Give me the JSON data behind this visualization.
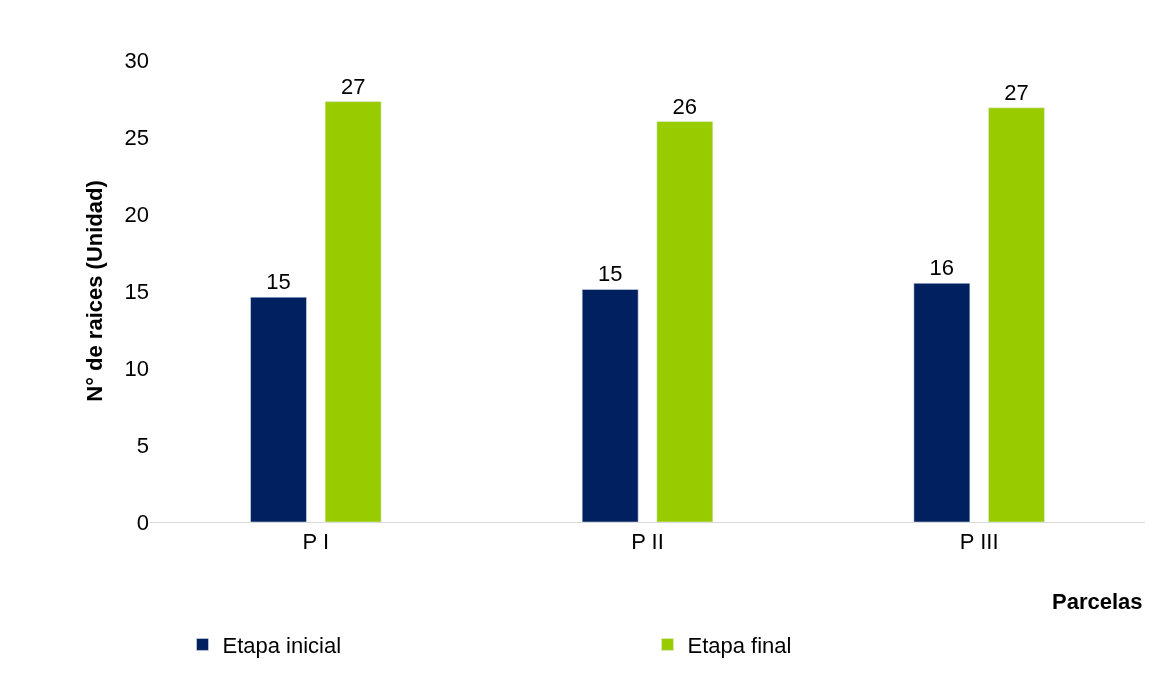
{
  "chart_data": {
    "type": "bar",
    "xlabel": "Parcelas",
    "ylabel": "N° de raices (Unidad)",
    "categories": [
      "P I",
      "P II",
      "P III"
    ],
    "series": [
      {
        "name": "Etapa inicial",
        "color": "#002060",
        "values": [
          14.6,
          15.1,
          15.5
        ],
        "value_labels": [
          "15",
          "15",
          "16"
        ]
      },
      {
        "name": "Etapa final",
        "color": "#99cc00",
        "values": [
          27.3,
          26.0,
          26.9
        ],
        "value_labels": [
          "27",
          "26",
          "27"
        ]
      }
    ],
    "ylim": [
      0,
      30
    ],
    "yticks": [
      0,
      5,
      10,
      15,
      20,
      25,
      30
    ],
    "legend": "bottom"
  }
}
